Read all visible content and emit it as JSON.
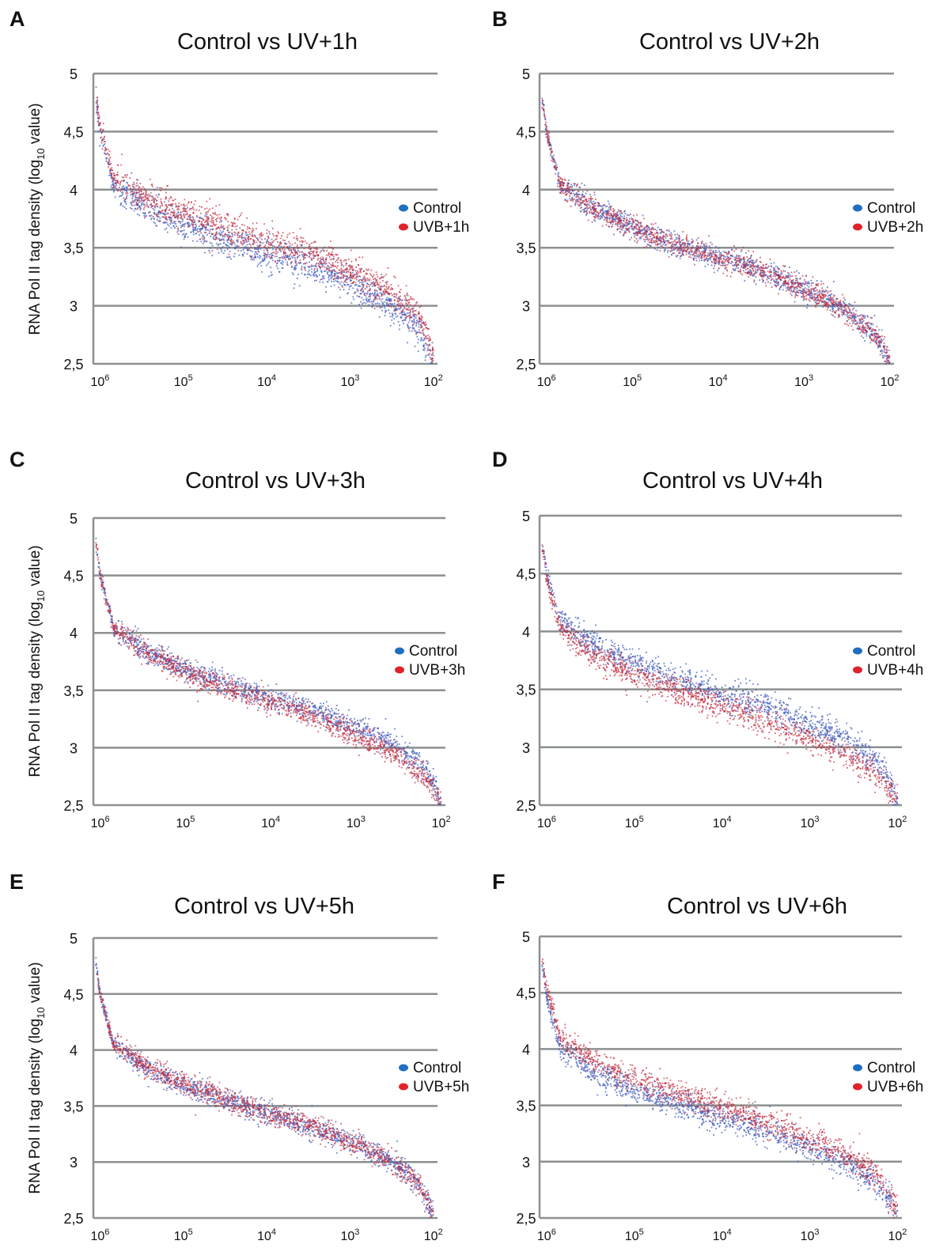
{
  "ylabel_main": "RNA Pol II tag density (log",
  "ylabel_sub": "10",
  "ylabel_end": " value)",
  "colors": {
    "control": "#3d5cc0",
    "treated": "#c42a3a",
    "legend_control": "#1f6fbf",
    "legend_treated": "#e0222a",
    "grid": "#8c9090"
  },
  "chart_data": [
    {
      "panel": "A",
      "type": "scatter",
      "title": "Control vs UV+1h",
      "ylim": [
        2.5,
        5
      ],
      "yticks": [
        "5",
        "4,5",
        "4",
        "3,5",
        "3",
        "2,5"
      ],
      "x_scale": "log-reversed",
      "xticks": [
        {
          "base": "10",
          "exp": "6"
        },
        {
          "base": "10",
          "exp": "5"
        },
        {
          "base": "10",
          "exp": "4"
        },
        {
          "base": "10",
          "exp": "3"
        },
        {
          "base": "10",
          "exp": "2"
        }
      ],
      "grid": true,
      "legend_position": "right",
      "series": [
        {
          "name": "Control",
          "x": [
            1200000,
            1000000,
            700000,
            300000,
            100000,
            30000,
            10000,
            3000,
            1000,
            300,
            150,
            100
          ],
          "y": [
            4.95,
            4.5,
            4.05,
            3.85,
            3.7,
            3.55,
            3.45,
            3.35,
            3.2,
            3.0,
            2.8,
            2.55
          ],
          "spread": 0.07
        },
        {
          "name": "UVB+1h",
          "x": [
            1200000,
            1000000,
            700000,
            300000,
            100000,
            30000,
            10000,
            3000,
            1000,
            300,
            150,
            100
          ],
          "y": [
            4.95,
            4.55,
            4.12,
            3.93,
            3.8,
            3.67,
            3.55,
            3.45,
            3.3,
            3.1,
            2.9,
            2.6
          ],
          "spread": 0.07
        }
      ]
    },
    {
      "panel": "B",
      "type": "scatter",
      "title": "Control vs UV+2h",
      "ylim": [
        2.5,
        5
      ],
      "yticks": [
        "5",
        "4,5",
        "4",
        "3,5",
        "3",
        "2,5"
      ],
      "x_scale": "log-reversed",
      "xticks": [
        {
          "base": "10",
          "exp": "6"
        },
        {
          "base": "10",
          "exp": "5"
        },
        {
          "base": "10",
          "exp": "4"
        },
        {
          "base": "10",
          "exp": "3"
        },
        {
          "base": "10",
          "exp": "2"
        }
      ],
      "grid": true,
      "legend_position": "right",
      "series": [
        {
          "name": "Control",
          "x": [
            1200000,
            1000000,
            700000,
            300000,
            100000,
            30000,
            10000,
            3000,
            1000,
            300,
            150,
            100
          ],
          "y": [
            4.95,
            4.5,
            4.05,
            3.85,
            3.68,
            3.52,
            3.42,
            3.3,
            3.15,
            2.95,
            2.75,
            2.55
          ],
          "spread": 0.05
        },
        {
          "name": "UVB+2h",
          "x": [
            1200000,
            1000000,
            700000,
            300000,
            100000,
            30000,
            10000,
            3000,
            1000,
            300,
            150,
            100
          ],
          "y": [
            4.95,
            4.5,
            4.05,
            3.85,
            3.68,
            3.52,
            3.42,
            3.3,
            3.14,
            2.94,
            2.74,
            2.55
          ],
          "spread": 0.05
        }
      ]
    },
    {
      "panel": "C",
      "type": "scatter",
      "title": "Control vs UV+3h",
      "ylim": [
        2.5,
        5
      ],
      "yticks": [
        "5",
        "4,5",
        "4",
        "3,5",
        "3",
        "2,5"
      ],
      "x_scale": "log-reversed",
      "xticks": [
        {
          "base": "10",
          "exp": "6"
        },
        {
          "base": "10",
          "exp": "5"
        },
        {
          "base": "10",
          "exp": "4"
        },
        {
          "base": "10",
          "exp": "3"
        },
        {
          "base": "10",
          "exp": "2"
        }
      ],
      "grid": true,
      "legend_position": "right",
      "series": [
        {
          "name": "Control",
          "x": [
            1200000,
            1000000,
            700000,
            300000,
            100000,
            30000,
            10000,
            3000,
            1000,
            300,
            150,
            100
          ],
          "y": [
            4.95,
            4.5,
            4.05,
            3.85,
            3.68,
            3.55,
            3.43,
            3.32,
            3.18,
            3.0,
            2.8,
            2.55
          ],
          "spread": 0.05
        },
        {
          "name": "UVB+3h",
          "x": [
            1200000,
            1000000,
            700000,
            300000,
            100000,
            30000,
            10000,
            3000,
            1000,
            300,
            150,
            100
          ],
          "y": [
            4.95,
            4.5,
            4.05,
            3.84,
            3.66,
            3.52,
            3.4,
            3.27,
            3.1,
            2.92,
            2.72,
            2.55
          ],
          "spread": 0.05
        }
      ]
    },
    {
      "panel": "D",
      "type": "scatter",
      "title": "Control vs UV+4h",
      "ylim": [
        2.5,
        5
      ],
      "yticks": [
        "5",
        "4,5",
        "4",
        "3,5",
        "3",
        "2,5"
      ],
      "x_scale": "log-reversed",
      "xticks": [
        {
          "base": "10",
          "exp": "6"
        },
        {
          "base": "10",
          "exp": "5"
        },
        {
          "base": "10",
          "exp": "4"
        },
        {
          "base": "10",
          "exp": "3"
        },
        {
          "base": "10",
          "exp": "2"
        }
      ],
      "grid": true,
      "legend_position": "right",
      "series": [
        {
          "name": "Control",
          "x": [
            1200000,
            1000000,
            700000,
            300000,
            100000,
            30000,
            10000,
            3000,
            1000,
            300,
            150,
            100
          ],
          "y": [
            4.95,
            4.5,
            4.1,
            3.9,
            3.72,
            3.58,
            3.46,
            3.35,
            3.2,
            3.02,
            2.82,
            2.55
          ],
          "spread": 0.06
        },
        {
          "name": "UVB+4h",
          "x": [
            1200000,
            1000000,
            700000,
            300000,
            100000,
            30000,
            10000,
            3000,
            1000,
            300,
            150,
            100
          ],
          "y": [
            4.95,
            4.45,
            4.02,
            3.8,
            3.62,
            3.48,
            3.35,
            3.22,
            3.07,
            2.9,
            2.72,
            2.55
          ],
          "spread": 0.06
        }
      ]
    },
    {
      "panel": "E",
      "type": "scatter",
      "title": "Control vs UV+5h",
      "ylim": [
        2.5,
        5
      ],
      "yticks": [
        "5",
        "4,5",
        "4",
        "3,5",
        "3",
        "2,5"
      ],
      "x_scale": "log-reversed",
      "xticks": [
        {
          "base": "10",
          "exp": "6"
        },
        {
          "base": "10",
          "exp": "5"
        },
        {
          "base": "10",
          "exp": "4"
        },
        {
          "base": "10",
          "exp": "3"
        },
        {
          "base": "10",
          "exp": "2"
        }
      ],
      "grid": true,
      "legend_position": "right",
      "series": [
        {
          "name": "Control",
          "x": [
            1200000,
            1000000,
            700000,
            300000,
            100000,
            30000,
            10000,
            3000,
            1000,
            300,
            150,
            100
          ],
          "y": [
            4.95,
            4.5,
            4.05,
            3.85,
            3.68,
            3.55,
            3.43,
            3.32,
            3.18,
            3.0,
            2.8,
            2.55
          ],
          "spread": 0.05
        },
        {
          "name": "UVB+5h",
          "x": [
            1200000,
            1000000,
            700000,
            300000,
            100000,
            30000,
            10000,
            3000,
            1000,
            300,
            150,
            100
          ],
          "y": [
            4.95,
            4.5,
            4.07,
            3.87,
            3.7,
            3.56,
            3.44,
            3.33,
            3.18,
            3.0,
            2.8,
            2.55
          ],
          "spread": 0.05
        }
      ]
    },
    {
      "panel": "F",
      "type": "scatter",
      "title": "Control vs UV+6h",
      "ylim": [
        2.5,
        5
      ],
      "yticks": [
        "5",
        "4,5",
        "4",
        "3,5",
        "3",
        "2,5"
      ],
      "x_scale": "log-reversed",
      "xticks": [
        {
          "base": "10",
          "exp": "6"
        },
        {
          "base": "10",
          "exp": "5"
        },
        {
          "base": "10",
          "exp": "4"
        },
        {
          "base": "10",
          "exp": "3"
        },
        {
          "base": "10",
          "exp": "2"
        }
      ],
      "grid": true,
      "legend_position": "right",
      "series": [
        {
          "name": "Control",
          "x": [
            1200000,
            1000000,
            700000,
            300000,
            100000,
            30000,
            10000,
            3000,
            1000,
            300,
            150,
            100
          ],
          "y": [
            4.95,
            4.45,
            4.0,
            3.8,
            3.63,
            3.5,
            3.38,
            3.27,
            3.12,
            2.95,
            2.76,
            2.55
          ],
          "spread": 0.06
        },
        {
          "name": "UVB+6h",
          "x": [
            1200000,
            1000000,
            700000,
            300000,
            100000,
            30000,
            10000,
            3000,
            1000,
            300,
            150,
            100
          ],
          "y": [
            4.95,
            4.55,
            4.1,
            3.9,
            3.73,
            3.6,
            3.48,
            3.36,
            3.2,
            3.02,
            2.82,
            2.58
          ],
          "spread": 0.06
        }
      ]
    }
  ]
}
